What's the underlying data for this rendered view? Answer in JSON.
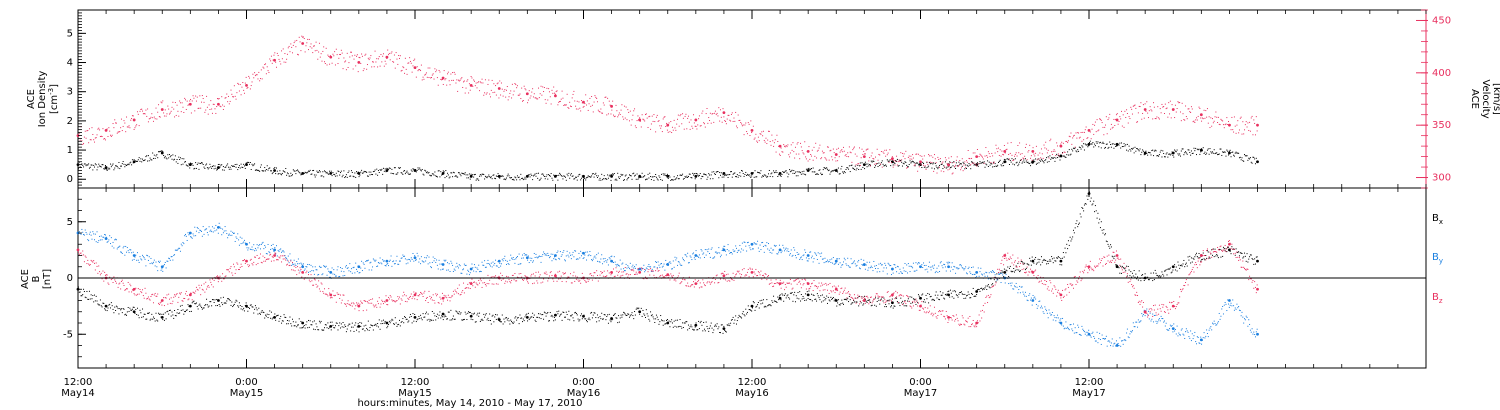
{
  "chart_data": [
    {
      "type": "scatter",
      "panel": "top",
      "ylabel_line1": "ACE",
      "ylabel_line2": "Ion Density",
      "ylabel_units": "[cm",
      "ylabel_units_sup": "-3",
      "ylabel_units_close": "]",
      "y2label_line1": "ACE",
      "y2label_line2": "Velocity",
      "y2label_units": "[km/s]",
      "ylim": [
        -0.3,
        5.8
      ],
      "y2lim": [
        290,
        460
      ],
      "yticks": [
        0,
        1,
        2,
        3,
        4,
        5
      ],
      "y2ticks": [
        300,
        350,
        400,
        450
      ],
      "colors": {
        "density": "#000000",
        "velocity": "#e8305f"
      },
      "series": [
        {
          "key": "density",
          "x": [
            0,
            2,
            4,
            6,
            8,
            10,
            12,
            14,
            16,
            18,
            20,
            22,
            24,
            26,
            28,
            30,
            32,
            34,
            36,
            38,
            40,
            42,
            44,
            46,
            48,
            50,
            52,
            54,
            56,
            58,
            60,
            62,
            64,
            66,
            68,
            70,
            72,
            74,
            76,
            78,
            80,
            82,
            84
          ],
          "values": [
            0.5,
            0.4,
            0.6,
            0.9,
            0.5,
            0.4,
            0.5,
            0.3,
            0.2,
            0.2,
            0.2,
            0.3,
            0.3,
            0.2,
            0.1,
            0.1,
            0.1,
            0.1,
            0.1,
            0.1,
            0.1,
            0.1,
            0.1,
            0.2,
            0.2,
            0.2,
            0.3,
            0.3,
            0.5,
            0.6,
            0.5,
            0.5,
            0.5,
            0.6,
            0.6,
            0.8,
            1.2,
            1.2,
            0.9,
            0.9,
            1.0,
            0.9,
            0.6
          ]
        },
        {
          "key": "velocity",
          "x": [
            0,
            2,
            4,
            6,
            8,
            10,
            12,
            14,
            16,
            18,
            20,
            22,
            24,
            26,
            28,
            30,
            32,
            34,
            36,
            38,
            40,
            42,
            44,
            46,
            48,
            50,
            52,
            54,
            56,
            58,
            60,
            62,
            64,
            66,
            68,
            70,
            72,
            74,
            76,
            78,
            80,
            82,
            84
          ],
          "values": [
            340,
            345,
            355,
            365,
            370,
            370,
            388,
            412,
            428,
            415,
            410,
            415,
            405,
            395,
            388,
            385,
            380,
            378,
            372,
            368,
            355,
            350,
            355,
            362,
            345,
            330,
            325,
            322,
            320,
            318,
            315,
            312,
            320,
            325,
            325,
            330,
            345,
            355,
            365,
            365,
            360,
            350,
            350
          ]
        }
      ]
    },
    {
      "type": "scatter",
      "panel": "bottom",
      "ylabel_line1": "ACE",
      "ylabel_line2": "B",
      "ylabel_units": "[nT]",
      "ylim": [
        -8,
        8
      ],
      "yticks": [
        -5,
        0,
        5
      ],
      "legend": [
        "B",
        "B",
        "B"
      ],
      "legend_sub": [
        "x",
        "y",
        "z"
      ],
      "legend_placement": "right",
      "colors": {
        "bx": "#000000",
        "by": "#1a7fe0",
        "bz": "#e8305f"
      },
      "series": [
        {
          "key": "bx",
          "x": [
            0,
            2,
            4,
            6,
            8,
            10,
            12,
            14,
            16,
            18,
            20,
            22,
            24,
            26,
            28,
            30,
            32,
            34,
            36,
            38,
            40,
            42,
            44,
            46,
            48,
            50,
            52,
            54,
            56,
            58,
            60,
            62,
            64,
            66,
            68,
            70,
            72,
            74,
            76,
            78,
            80,
            82,
            84
          ],
          "values": [
            -1.0,
            -2.5,
            -3.0,
            -3.5,
            -2.5,
            -2.0,
            -2.5,
            -3.5,
            -4.0,
            -4.3,
            -4.3,
            -4.0,
            -3.5,
            -3.2,
            -3.4,
            -3.7,
            -3.5,
            -3.3,
            -3.4,
            -3.6,
            -3.0,
            -4.0,
            -4.2,
            -4.5,
            -2.5,
            -1.8,
            -1.5,
            -2.0,
            -2.0,
            -2.2,
            -1.8,
            -1.5,
            -1.2,
            0.5,
            1.5,
            1.5,
            7.5,
            1.0,
            0.0,
            1.0,
            2.0,
            2.5,
            1.5
          ]
        },
        {
          "key": "by",
          "x": [
            0,
            2,
            4,
            6,
            8,
            10,
            12,
            14,
            16,
            18,
            20,
            22,
            24,
            26,
            28,
            30,
            32,
            34,
            36,
            38,
            40,
            42,
            44,
            46,
            48,
            50,
            52,
            54,
            56,
            58,
            60,
            62,
            64,
            66,
            68,
            70,
            72,
            74,
            76,
            78,
            80,
            82,
            84
          ],
          "values": [
            4.0,
            3.5,
            2.0,
            1.0,
            4.0,
            4.5,
            3.0,
            2.5,
            1.0,
            0.5,
            1.0,
            1.5,
            1.8,
            1.2,
            0.8,
            1.5,
            1.8,
            2.0,
            2.2,
            1.5,
            0.8,
            1.2,
            2.0,
            2.5,
            3.0,
            2.5,
            2.0,
            1.5,
            1.2,
            0.8,
            1.0,
            1.0,
            0.5,
            0.0,
            -2.0,
            -4.0,
            -5.0,
            -6.0,
            -3.0,
            -4.5,
            -5.5,
            -2.0,
            -5.0
          ]
        },
        {
          "key": "bz",
          "x": [
            0,
            2,
            4,
            6,
            8,
            10,
            12,
            14,
            16,
            18,
            20,
            22,
            24,
            26,
            28,
            30,
            32,
            34,
            36,
            38,
            40,
            42,
            44,
            46,
            48,
            50,
            52,
            54,
            56,
            58,
            60,
            62,
            64,
            66,
            68,
            70,
            72,
            74,
            76,
            78,
            80,
            82,
            84
          ],
          "values": [
            2.5,
            0.0,
            -1.0,
            -2.0,
            -1.5,
            0.0,
            1.5,
            2.0,
            0.5,
            -1.5,
            -2.5,
            -2.0,
            -1.5,
            -1.8,
            -0.5,
            0.0,
            0.0,
            0.2,
            0.0,
            0.5,
            0.5,
            0.3,
            -0.5,
            0.2,
            0.5,
            -0.5,
            -0.5,
            -1.0,
            -2.0,
            -1.5,
            -2.5,
            -3.5,
            -4.0,
            2.0,
            0.5,
            -1.5,
            1.0,
            2.0,
            -3.0,
            -2.5,
            2.0,
            3.0,
            -1.0
          ]
        }
      ]
    }
  ],
  "x_axis": {
    "ticks": [
      {
        "time": "12:00",
        "date": "May14"
      },
      {
        "time": "0:00",
        "date": "May15"
      },
      {
        "time": "12:00",
        "date": "May15"
      },
      {
        "time": "0:00",
        "date": "May16"
      },
      {
        "time": "12:00",
        "date": "May16"
      },
      {
        "time": "0:00",
        "date": "May17"
      },
      {
        "time": "12:00",
        "date": "May17"
      }
    ],
    "label": "hours:minutes, May 14, 2010 - May 17, 2010"
  }
}
